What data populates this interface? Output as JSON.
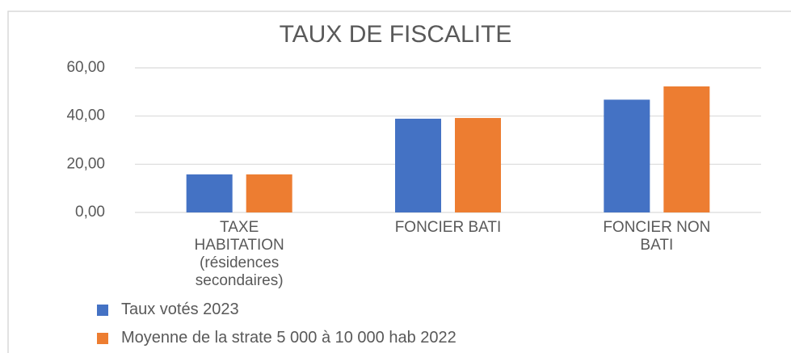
{
  "chart_data": {
    "type": "bar",
    "title": "TAUX DE FISCALITE",
    "categories": [
      "TAXE HABITATION (résidences secondaires)",
      "FONCIER BATI",
      "FONCIER NON BATI"
    ],
    "series": [
      {
        "name": "Taux votés 2023",
        "color": "#4472c4",
        "values": [
          15.8,
          38.9,
          46.8
        ]
      },
      {
        "name": "Moyenne de la strate 5 000 à 10 000 hab 2022",
        "color": "#ed7d31",
        "values": [
          15.8,
          39.2,
          52.3
        ]
      }
    ],
    "ylim": [
      0,
      60
    ],
    "yticks": [
      {
        "value": 0,
        "label": "0,00"
      },
      {
        "value": 20,
        "label": "20,00"
      },
      {
        "value": 40,
        "label": "40,00"
      },
      {
        "value": 60,
        "label": "60,00"
      }
    ],
    "grid": true,
    "legend": "bottom"
  }
}
